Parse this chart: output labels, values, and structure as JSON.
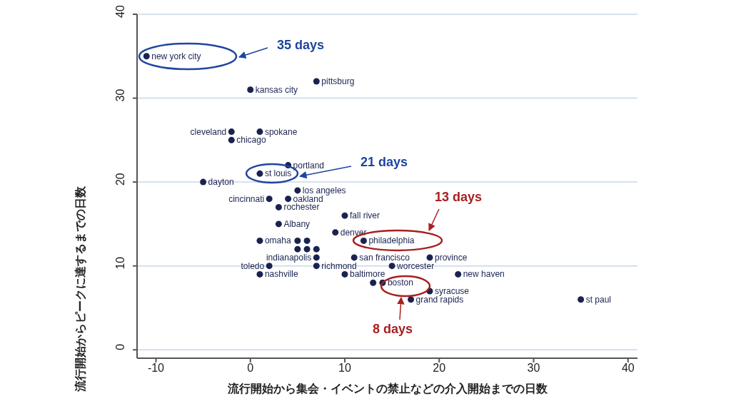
{
  "chart_data": {
    "type": "scatter",
    "xlabel": "流行開始から集会・イベントの禁止などの介入開始までの日数",
    "ylabel": "流行開始からピークに達するまでの日数",
    "x": [
      -11,
      0,
      7,
      -2,
      1,
      -2,
      4,
      1,
      -5,
      5,
      2,
      4,
      3,
      10,
      3,
      9,
      1,
      5,
      6,
      5,
      6,
      7,
      12,
      7,
      11,
      19,
      2,
      7,
      15,
      1,
      10,
      22,
      13,
      14,
      19,
      17,
      35
    ],
    "values": [
      35,
      31,
      32,
      26,
      26,
      25,
      22,
      21,
      20,
      19,
      18,
      18,
      17,
      16,
      15,
      14,
      13,
      13,
      13,
      12,
      12,
      12,
      13,
      11,
      11,
      11,
      10,
      10,
      10,
      9,
      9,
      9,
      8,
      8,
      7,
      6,
      6
    ],
    "value_labels": [
      "new york city",
      "kansas city",
      "pittsburg",
      "cleveland",
      "spokane",
      "chicago",
      "portland",
      "st louis",
      "dayton",
      "los angeles",
      "cincinnati",
      "oakland",
      "rochester",
      "fall river",
      "Albany",
      "denver",
      "omaha",
      null,
      null,
      null,
      null,
      null,
      "philadelphia",
      "indianapolis",
      "san francisco",
      "province",
      "toledo",
      "richmond",
      "worcester",
      "nashville",
      "baltimore",
      "new haven",
      null,
      "boston",
      "syracuse",
      "grand rapids",
      "st paul"
    ],
    "color": "#1a2350",
    "marker": "circle",
    "xlim": [
      -12,
      41
    ],
    "ylim": [
      -1,
      40
    ],
    "xticks": [
      -10,
      0,
      10,
      20,
      30,
      40
    ],
    "yticks": [
      0,
      10,
      20,
      30,
      40
    ],
    "grid": "y",
    "annotations": [
      "35 days",
      "21 days",
      "13 days",
      "8 days"
    ]
  }
}
